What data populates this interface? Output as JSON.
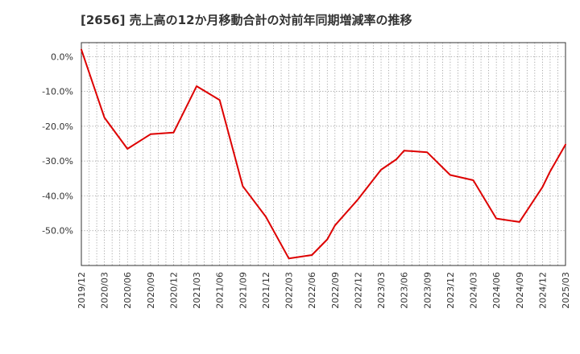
{
  "chart_data": {
    "type": "line",
    "title": "[2656]  売上高の12か月移動合計の対前年同期増減率の推移",
    "xlabel": "",
    "ylabel": "",
    "ylim": [
      -60,
      4
    ],
    "y_ticks": [
      0,
      -10,
      -20,
      -30,
      -40,
      -50
    ],
    "y_tick_labels": [
      "0.0%",
      "-10.0%",
      "-20.0%",
      "-30.0%",
      "-40.0%",
      "-50.0%"
    ],
    "x_tick_labels": [
      "2019/12",
      "2020/03",
      "2020/06",
      "2020/09",
      "2020/12",
      "2021/03",
      "2021/06",
      "2021/09",
      "2021/12",
      "2022/03",
      "2022/06",
      "2022/09",
      "2022/12",
      "2023/03",
      "2023/06",
      "2023/09",
      "2023/12",
      "2024/03",
      "2024/06",
      "2024/09",
      "2024/12",
      "2025/03"
    ],
    "grid": true,
    "color": "#dd0000",
    "series": [
      {
        "name": "対前年同期増減率",
        "x": [
          0,
          3,
          6,
          9,
          12,
          15,
          18,
          21,
          24,
          27,
          30,
          32,
          33,
          36,
          39,
          41,
          42,
          45,
          48,
          51,
          54,
          57,
          60,
          61,
          63
        ],
        "values": [
          2.0,
          -17.5,
          -26.5,
          -22.3,
          -21.8,
          -8.5,
          -12.5,
          -37.2,
          -46.0,
          -58.0,
          -57.0,
          -52.5,
          -48.5,
          -41.0,
          -32.5,
          -29.5,
          -27.0,
          -27.5,
          -34.0,
          -35.5,
          -46.5,
          -47.5,
          -37.5,
          -33.0,
          -25.3
        ]
      }
    ]
  }
}
